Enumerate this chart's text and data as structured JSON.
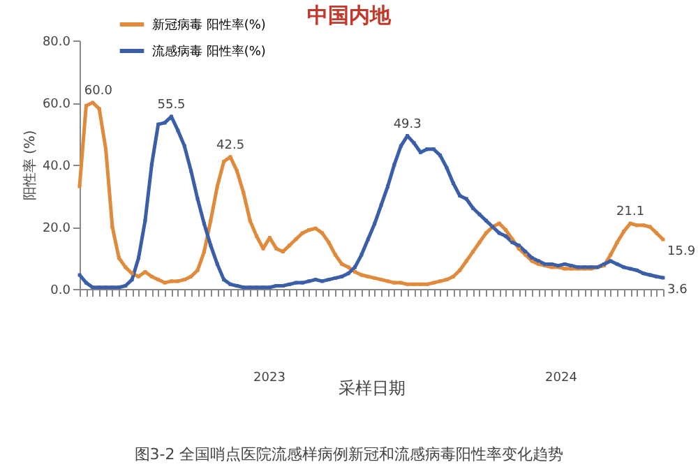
{
  "chart_data": {
    "type": "line",
    "title": "中国内地",
    "xlabel": "采样日期",
    "ylabel": "阳性率 (%)",
    "categories": [
      null,
      null,
      null,
      null,
      null,
      null,
      null,
      null,
      null,
      null,
      null,
      null,
      null,
      null,
      null,
      null,
      null,
      null,
      null,
      null,
      null,
      null,
      null,
      null,
      null,
      null,
      null,
      null,
      null,
      null,
      null,
      null,
      null,
      null,
      null,
      null,
      null,
      null,
      null,
      null,
      null,
      null,
      null,
      null,
      null,
      null,
      null,
      null,
      null,
      null,
      null,
      null,
      null,
      null,
      null,
      null,
      null,
      null,
      null,
      null,
      null,
      null,
      null,
      null,
      null,
      null,
      null,
      null,
      null,
      null,
      null,
      null,
      null,
      null,
      null,
      null,
      null,
      null,
      null,
      null,
      null,
      null,
      null,
      null,
      null,
      null,
      null,
      null,
      null,
      null
    ],
    "series": [
      {
        "name": "新冠病毒 阳性率(%)",
        "color": "#e08a3c",
        "values": [
          33,
          59,
          60,
          58,
          45,
          20,
          10,
          7,
          5,
          4,
          5.5,
          4,
          3,
          2,
          2.5,
          2.5,
          3,
          4,
          6,
          12,
          22,
          33,
          41,
          42.5,
          38,
          31,
          22,
          17,
          13,
          16.5,
          13,
          12,
          14,
          16,
          18,
          19,
          19.5,
          18,
          15,
          11,
          8,
          7,
          5.5,
          4.5,
          4,
          3.5,
          3,
          2.5,
          2,
          2,
          1.5,
          1.5,
          1.5,
          1.5,
          2,
          2.5,
          3,
          4,
          6,
          9,
          12,
          15,
          18,
          20,
          21.1,
          19,
          16,
          13,
          11,
          9,
          8,
          7.5,
          7,
          7,
          6.5,
          6.5,
          6.5,
          6.5,
          6.5,
          7,
          7.5,
          11,
          15,
          18.5,
          21.1,
          20.5,
          20.5,
          20,
          18,
          15.9
        ],
        "value_labels": [
          null,
          null,
          "60.0",
          null,
          null,
          null,
          null,
          null,
          null,
          null,
          null,
          null,
          null,
          null,
          null,
          null,
          null,
          null,
          null,
          null,
          null,
          null,
          null,
          "42.5",
          null,
          null,
          null,
          null,
          null,
          null,
          null,
          null,
          null,
          null,
          null,
          null,
          null,
          null,
          null,
          null,
          null,
          null,
          null,
          null,
          null,
          null,
          null,
          null,
          null,
          null,
          null,
          null,
          null,
          null,
          null,
          null,
          null,
          null,
          null,
          null,
          null,
          null,
          null,
          null,
          null,
          null,
          null,
          null,
          null,
          null,
          null,
          null,
          null,
          null,
          null,
          null,
          null,
          null,
          null,
          null,
          null,
          null,
          null,
          null,
          "21.1",
          null,
          null,
          null,
          null,
          "15.9"
        ]
      },
      {
        "name": "流感病毒 阳性率(%)",
        "color": "#3a5fa8",
        "values": [
          4.5,
          2,
          0.5,
          0.5,
          0.5,
          0.5,
          0.5,
          1,
          3,
          10,
          22,
          40,
          53,
          53.5,
          55.5,
          51,
          46,
          38,
          29,
          21,
          14,
          8,
          3,
          1.5,
          1,
          0.5,
          0.5,
          0.5,
          0.5,
          0.5,
          1,
          1,
          1.5,
          2,
          2,
          2.5,
          3,
          2.5,
          3,
          3.5,
          4,
          5,
          7,
          11,
          16,
          21,
          27,
          33,
          40,
          46,
          49.3,
          47,
          44,
          45,
          45,
          43,
          39,
          34,
          30,
          29,
          26,
          24,
          22,
          20,
          18,
          17,
          15,
          14,
          12,
          10,
          9,
          8,
          8,
          7.5,
          8,
          7.5,
          7,
          7,
          7,
          7,
          8,
          9,
          8,
          7,
          6.5,
          6,
          5,
          4.5,
          4,
          3.6
        ],
        "value_labels": [
          null,
          null,
          null,
          null,
          null,
          null,
          null,
          null,
          null,
          null,
          null,
          null,
          null,
          null,
          "55.5",
          null,
          null,
          null,
          null,
          null,
          null,
          null,
          null,
          null,
          null,
          null,
          null,
          null,
          null,
          null,
          null,
          null,
          null,
          null,
          null,
          null,
          null,
          null,
          null,
          null,
          null,
          null,
          null,
          null,
          null,
          null,
          null,
          null,
          null,
          null,
          "49.3",
          null,
          null,
          null,
          null,
          null,
          null,
          null,
          null,
          null,
          null,
          null,
          null,
          null,
          null,
          null,
          null,
          null,
          null,
          null,
          null,
          null,
          null,
          null,
          null,
          null,
          null,
          null,
          null,
          null,
          null,
          null,
          null,
          null,
          null,
          null,
          null,
          null,
          null,
          "3.6"
        ]
      }
    ],
    "ylim": [
      0,
      80
    ],
    "yticks": [
      {
        "value": 0,
        "label": "0.0"
      },
      {
        "value": 20,
        "label": "20.0"
      },
      {
        "value": 40,
        "label": "40.0"
      },
      {
        "value": 60,
        "label": "60.0"
      },
      {
        "value": 80,
        "label": "80.0"
      }
    ],
    "grid": false,
    "legend": "top left",
    "marker": "square",
    "line_style": "solid",
    "annotations": [
      "2023",
      "2024",
      "图3-2 全国哨点医院流感样病例新冠和流感病毒阳性率变化趋势"
    ]
  }
}
